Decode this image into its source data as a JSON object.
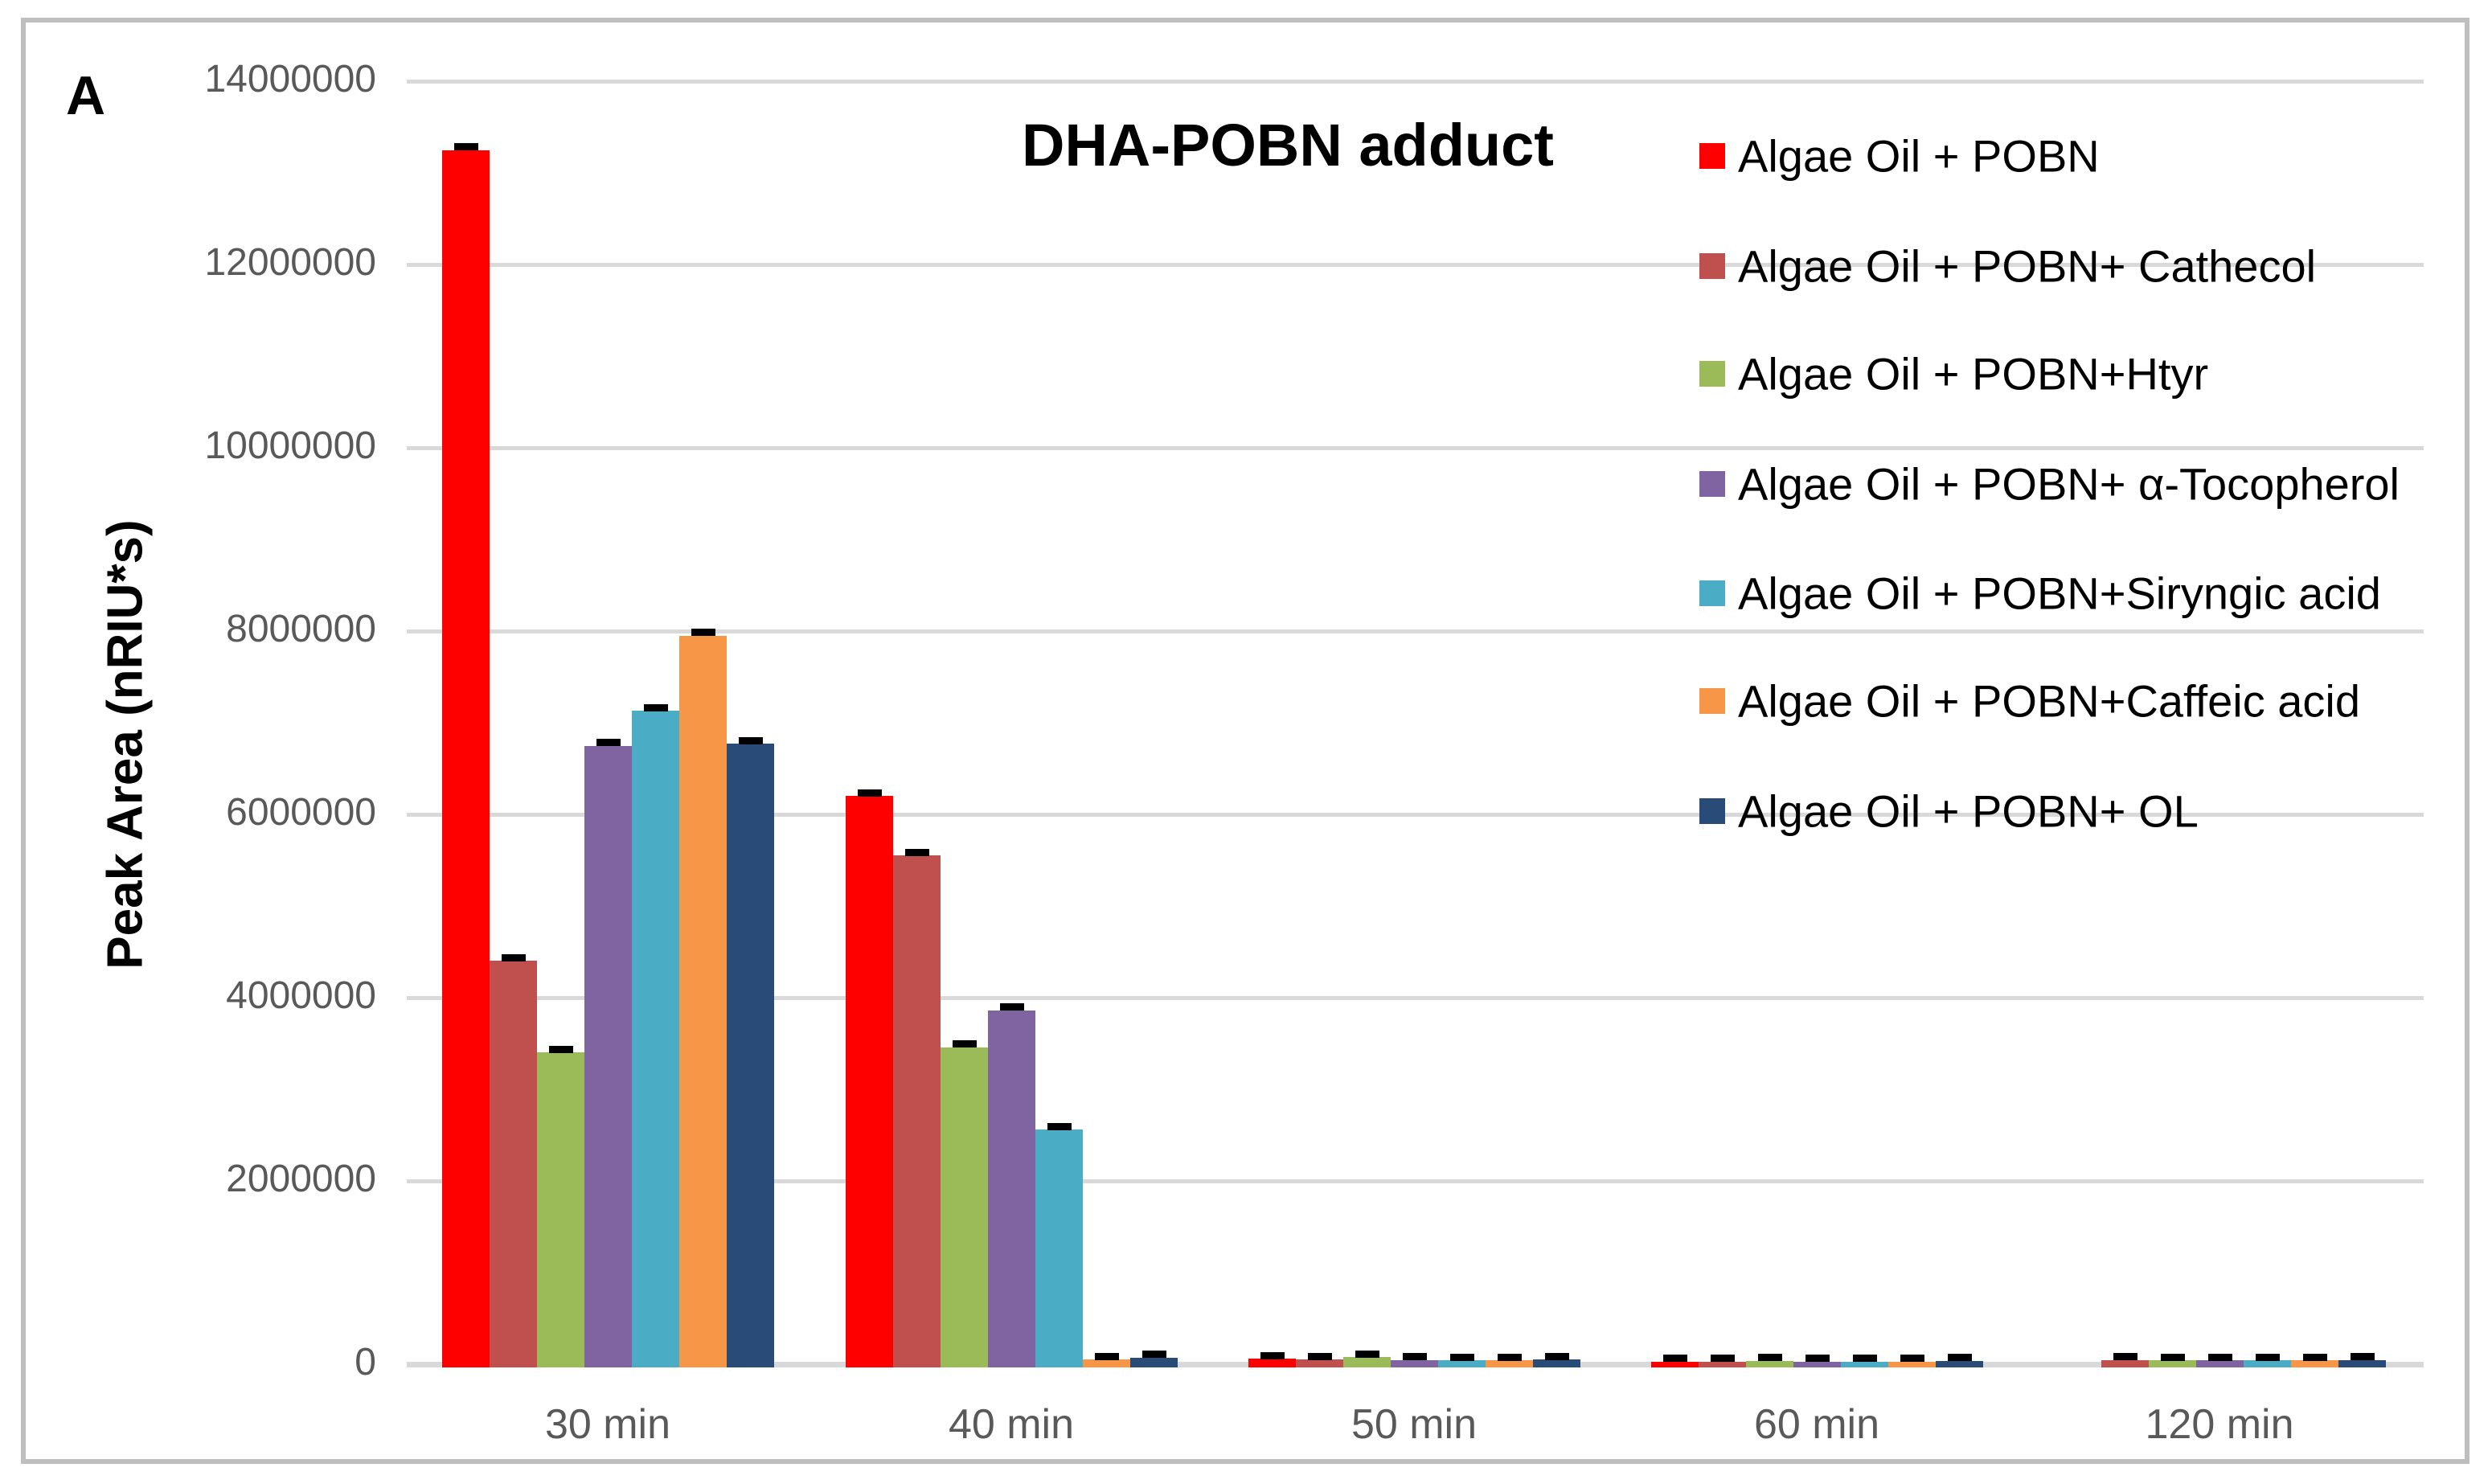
{
  "panel_label": "A",
  "chart_data": {
    "type": "bar",
    "title": "DHA-POBN adduct",
    "ylabel": "Peak Area (nRIU*s)",
    "xlabel": "",
    "categories": [
      "30 min",
      "40 min",
      "50 min",
      "60 min",
      "120 min"
    ],
    "series": [
      {
        "name": "Algae Oil + POBN",
        "color": "#ff0000",
        "values": [
          13250000,
          6200000,
          60000,
          30000,
          0
        ]
      },
      {
        "name": "Algae Oil + POBN+ Cathecol",
        "color": "#c0504d",
        "values": [
          4400000,
          5550000,
          50000,
          30000,
          45000
        ]
      },
      {
        "name": "Algae Oil + POBN+Htyr",
        "color": "#9bbb59",
        "values": [
          3400000,
          3460000,
          75000,
          35000,
          40000
        ]
      },
      {
        "name": "Algae Oil + POBN+ α-Tocopherol",
        "color": "#8064a2",
        "values": [
          6750000,
          3860000,
          45000,
          30000,
          40000
        ]
      },
      {
        "name": "Algae Oil + POBN+Siryngic acid",
        "color": "#4bacc6",
        "values": [
          7130000,
          2560000,
          42000,
          30000,
          40000
        ]
      },
      {
        "name": "Algae Oil + POBN+Caffeic acid",
        "color": "#f79646",
        "values": [
          7950000,
          50000,
          42000,
          30000,
          40000
        ]
      },
      {
        "name": "Algae Oil + POBN+ OL",
        "color": "#284c77",
        "values": [
          6770000,
          70000,
          50000,
          35000,
          45000
        ]
      }
    ],
    "error_bar": 40000,
    "ylim": [
      0,
      14000000
    ],
    "ytick_step": 2000000,
    "y_ticks": [
      "0",
      "2000000",
      "4000000",
      "6000000",
      "8000000",
      "10000000",
      "12000000",
      "14000000"
    ],
    "grid": true,
    "legend_position": "top-right",
    "colors": {
      "gridline": "#d9d9d9",
      "axis_text": "#595959",
      "border": "#bfbfbf",
      "error_bar": "#000000",
      "title": "#000000"
    }
  }
}
